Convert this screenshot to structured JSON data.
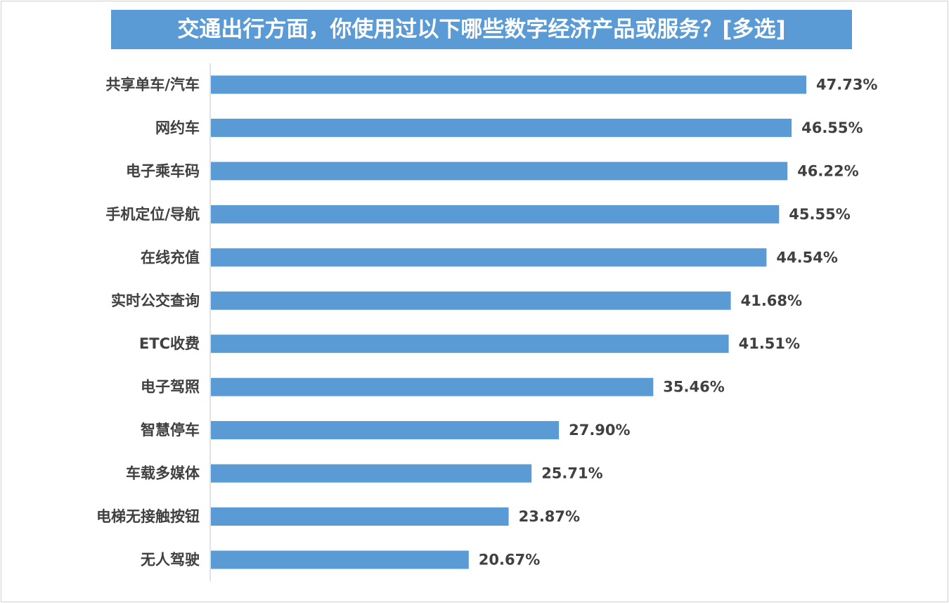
{
  "chart_data": {
    "type": "bar",
    "orientation": "horizontal",
    "title": "交通出行方面，你使用过以下哪些数字经济产品或服务？[多选]",
    "categories": [
      "共享单车/汽车",
      "网约车",
      "电子乘车码",
      "手机定位/导航",
      "在线充值",
      "实时公交查询",
      "ETC收费",
      "电子驾照",
      "智慧停车",
      "车载多媒体",
      "电梯无接触按钮",
      "无人驾驶"
    ],
    "values": [
      47.73,
      46.55,
      46.22,
      45.55,
      44.54,
      41.68,
      41.51,
      35.46,
      27.9,
      25.71,
      23.87,
      20.67
    ],
    "value_labels": [
      "47.73%",
      "46.55%",
      "46.22%",
      "45.55%",
      "44.54%",
      "41.68%",
      "41.51%",
      "35.46%",
      "27.90%",
      "25.71%",
      "23.87%",
      "20.67%"
    ],
    "xlim": [
      0,
      100
    ],
    "grid": false,
    "legend": "none",
    "bar_color": "#5b9bd5",
    "title_background": "#5b9bd5",
    "title_color": "#ffffff",
    "label_color": "#404040"
  }
}
